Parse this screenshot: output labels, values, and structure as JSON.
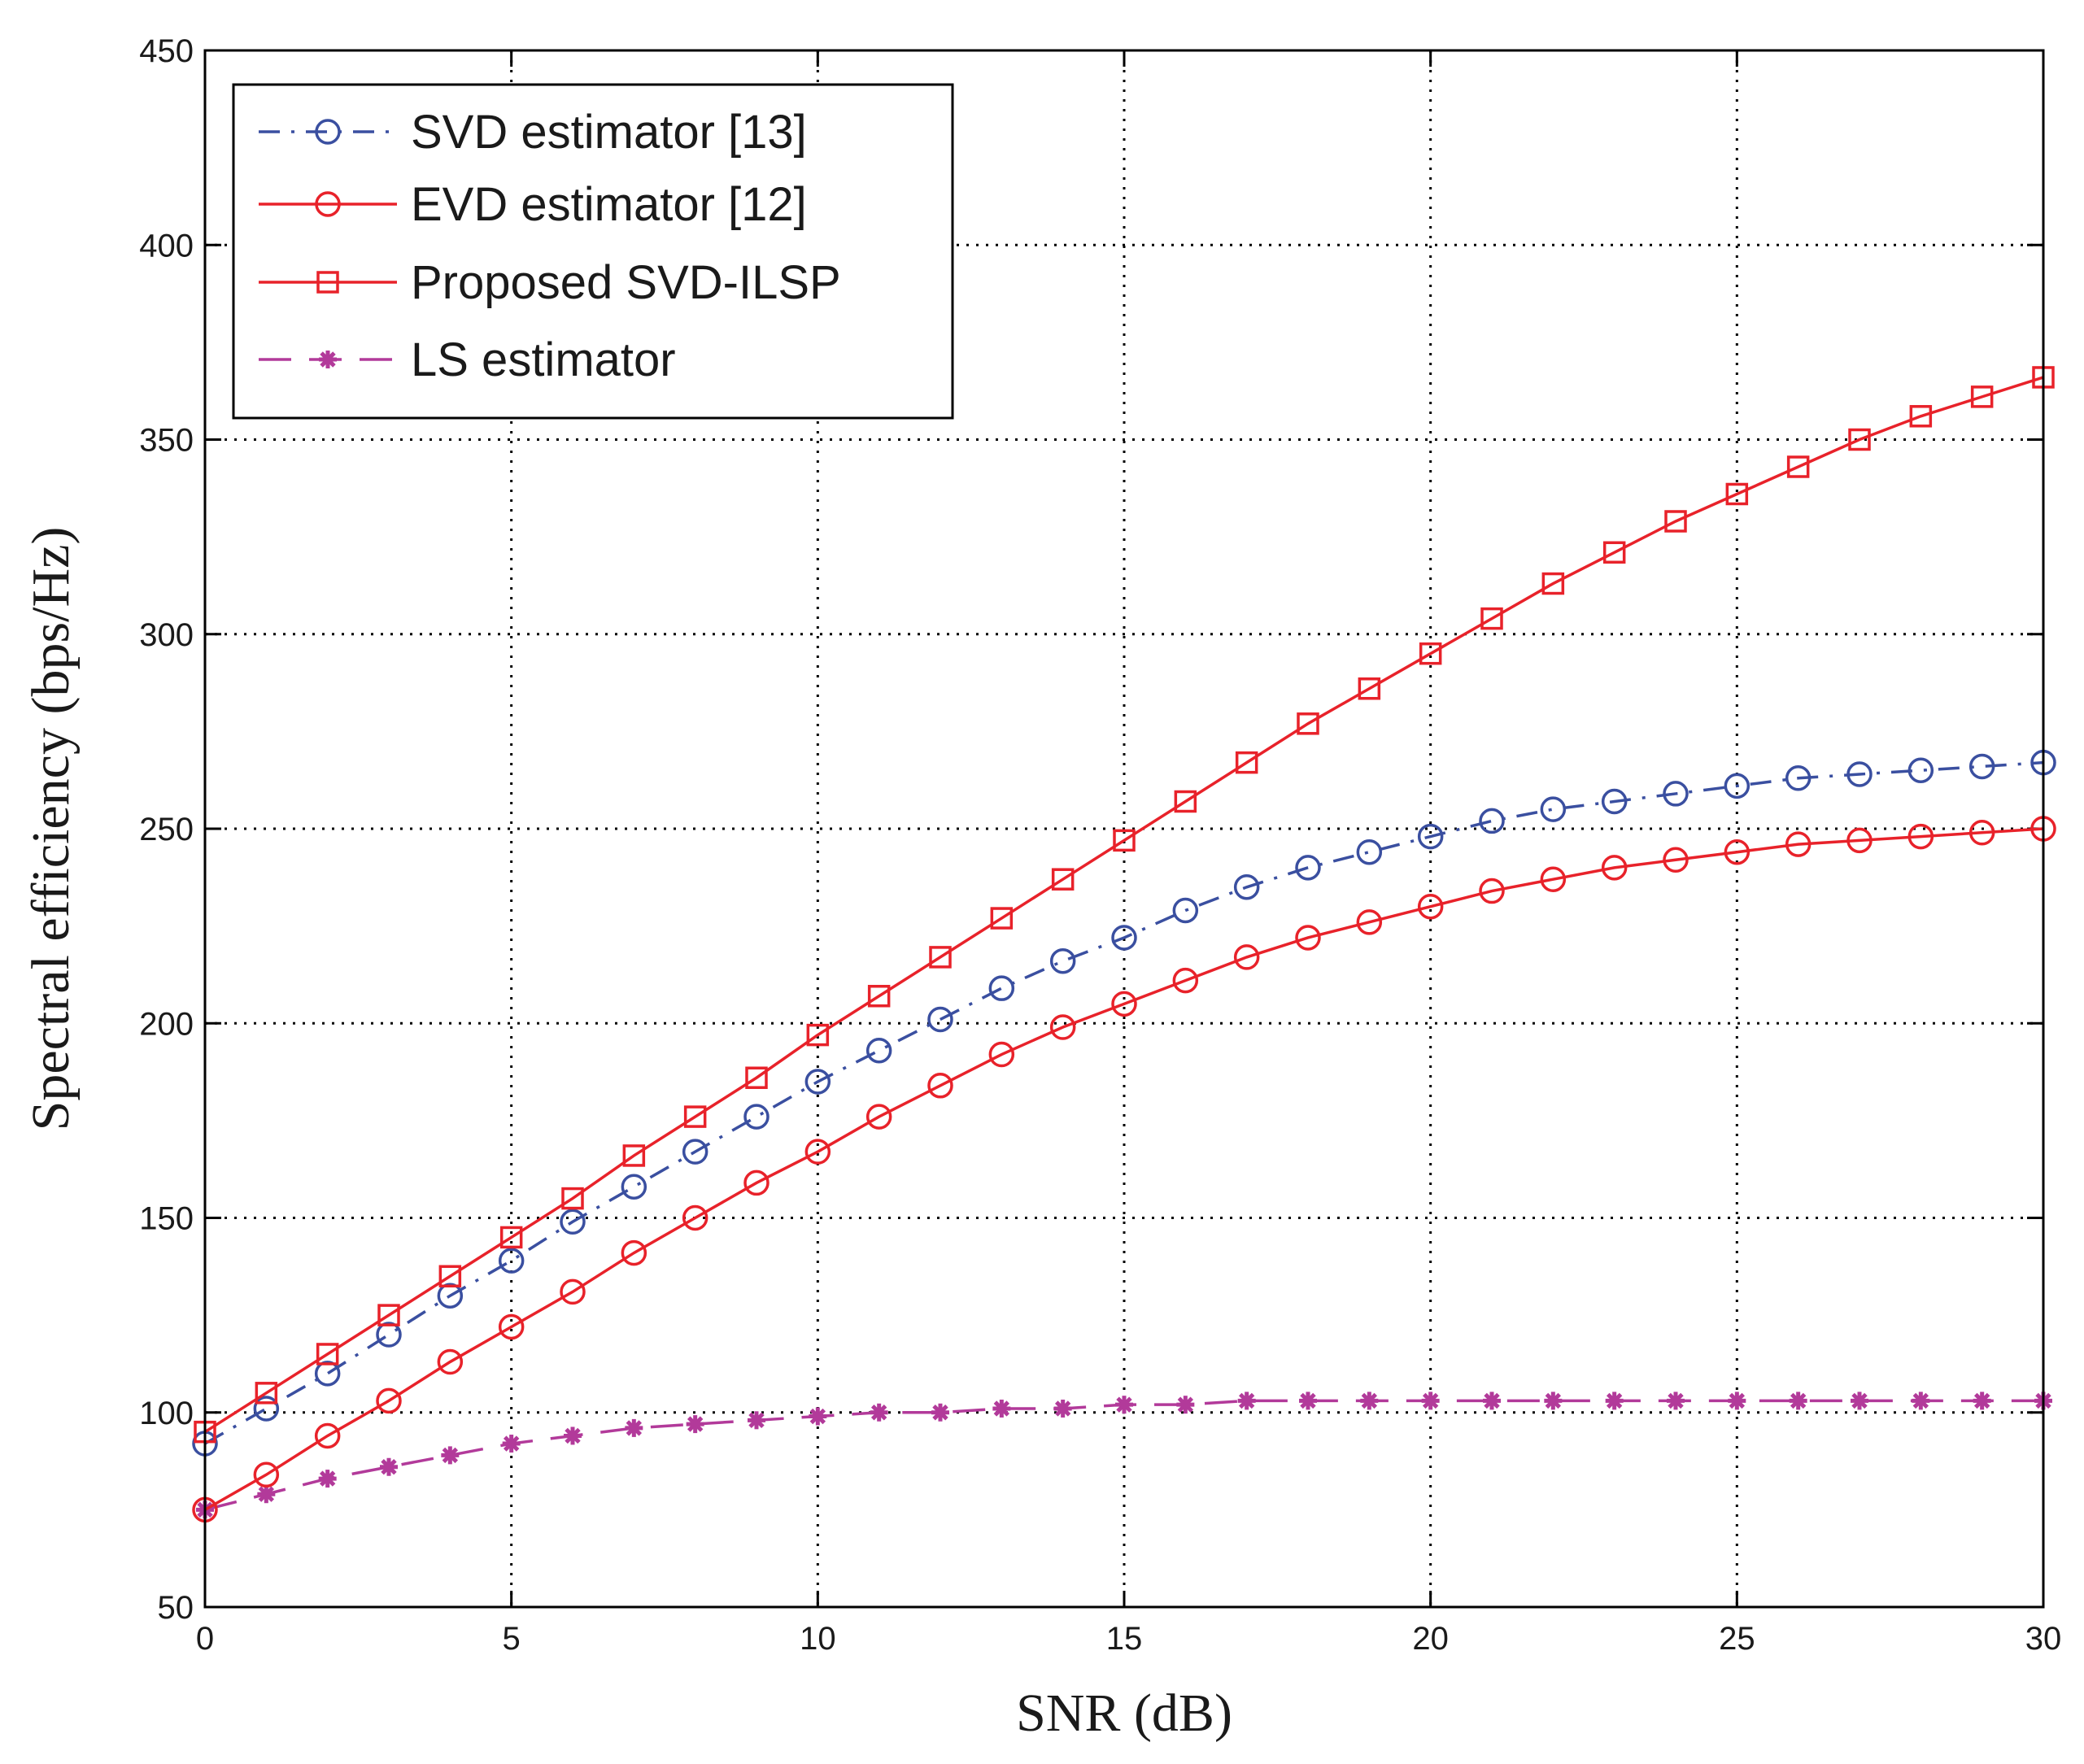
{
  "chart_data": {
    "type": "line",
    "title": "",
    "xlabel": "SNR (dB)",
    "ylabel": "Spectral efficiency (bps/Hz)",
    "xlim": [
      0,
      30
    ],
    "ylim": [
      50,
      450
    ],
    "xticks": [
      0,
      5,
      10,
      15,
      20,
      25,
      30
    ],
    "yticks": [
      50,
      100,
      150,
      200,
      250,
      300,
      350,
      400,
      450
    ],
    "grid": true,
    "legend_position": "top-left",
    "x": [
      0,
      1,
      2,
      3,
      4,
      5,
      6,
      7,
      8,
      9,
      10,
      11,
      12,
      13,
      14,
      15,
      16,
      17,
      18,
      19,
      20,
      21,
      22,
      23,
      24,
      25,
      26,
      27,
      28,
      29,
      30
    ],
    "series": [
      {
        "name": "SVD estimator [13]",
        "color": "#3a4fa0",
        "line_style": "dashdot",
        "marker": "circle",
        "values": [
          92,
          101,
          110,
          120,
          130,
          139,
          149,
          158,
          167,
          176,
          185,
          193,
          201,
          209,
          216,
          222,
          229,
          235,
          240,
          244,
          248,
          252,
          255,
          257,
          259,
          261,
          263,
          264,
          265,
          266,
          267
        ]
      },
      {
        "name": "EVD estimator [12]",
        "color": "#e8222a",
        "line_style": "solid",
        "marker": "circle",
        "values": [
          75,
          84,
          94,
          103,
          113,
          122,
          131,
          141,
          150,
          159,
          167,
          176,
          184,
          192,
          199,
          205,
          211,
          217,
          222,
          226,
          230,
          234,
          237,
          240,
          242,
          244,
          246,
          247,
          248,
          249,
          250
        ]
      },
      {
        "name": "Proposed SVD-ILSP",
        "color": "#e8222a",
        "line_style": "solid",
        "marker": "square",
        "values": [
          95,
          105,
          115,
          125,
          135,
          145,
          155,
          166,
          176,
          186,
          197,
          207,
          217,
          227,
          237,
          247,
          257,
          267,
          277,
          286,
          295,
          304,
          313,
          321,
          329,
          336,
          343,
          350,
          356,
          361,
          366
        ]
      },
      {
        "name": "LS estimator",
        "color": "#b23a9a",
        "line_style": "dashed",
        "marker": "star",
        "values": [
          75,
          79,
          83,
          86,
          89,
          92,
          94,
          96,
          97,
          98,
          99,
          100,
          100,
          101,
          101,
          102,
          102,
          103,
          103,
          103,
          103,
          103,
          103,
          103,
          103,
          103,
          103,
          103,
          103,
          103,
          103
        ]
      }
    ]
  }
}
